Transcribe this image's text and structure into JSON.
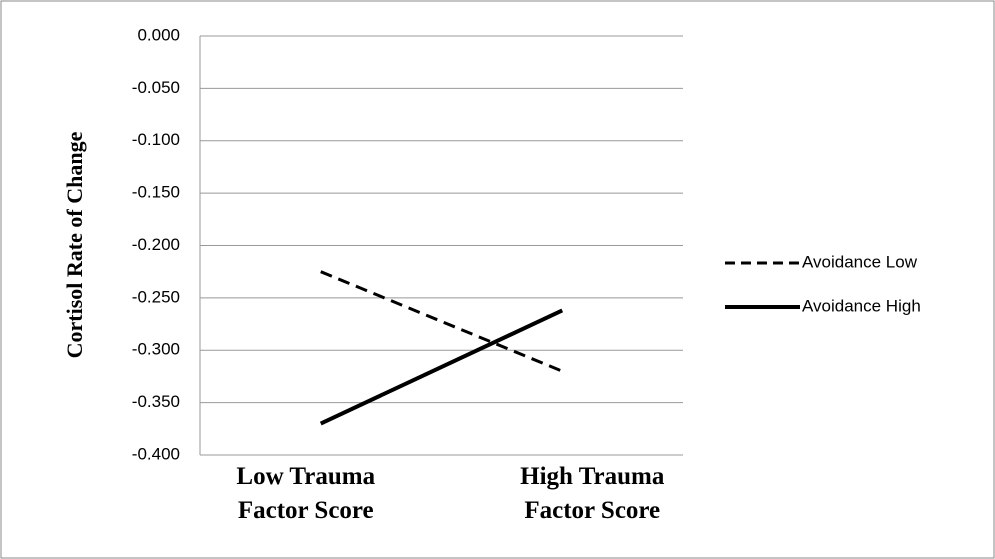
{
  "chart_data": {
    "type": "line",
    "y_label": "Cortisol Rate of Change",
    "categories": [
      "Low Trauma Factor Score",
      "High Trauma Factor Score"
    ],
    "series": [
      {
        "name": "Avoidance Low",
        "color": "#000000",
        "dash": "dashed",
        "values": [
          -0.225,
          -0.32
        ]
      },
      {
        "name": "Avoidance High",
        "color": "#000000",
        "dash": "solid",
        "values": [
          -0.37,
          -0.262
        ]
      }
    ],
    "ylim": [
      -0.4,
      0
    ],
    "yticks": [
      {
        "value": 0,
        "label": "0.000"
      },
      {
        "value": -0.05,
        "label": "-0.050"
      },
      {
        "value": -0.1,
        "label": "-0.100"
      },
      {
        "value": -0.15,
        "label": "-0.150"
      },
      {
        "value": -0.2,
        "label": "-0.200"
      },
      {
        "value": -0.25,
        "label": "-0.250"
      },
      {
        "value": -0.3,
        "label": "-0.300"
      },
      {
        "value": -0.35,
        "label": "-0.350"
      },
      {
        "value": -0.4,
        "label": "-0.400"
      }
    ],
    "grid": true,
    "legend": "right"
  }
}
